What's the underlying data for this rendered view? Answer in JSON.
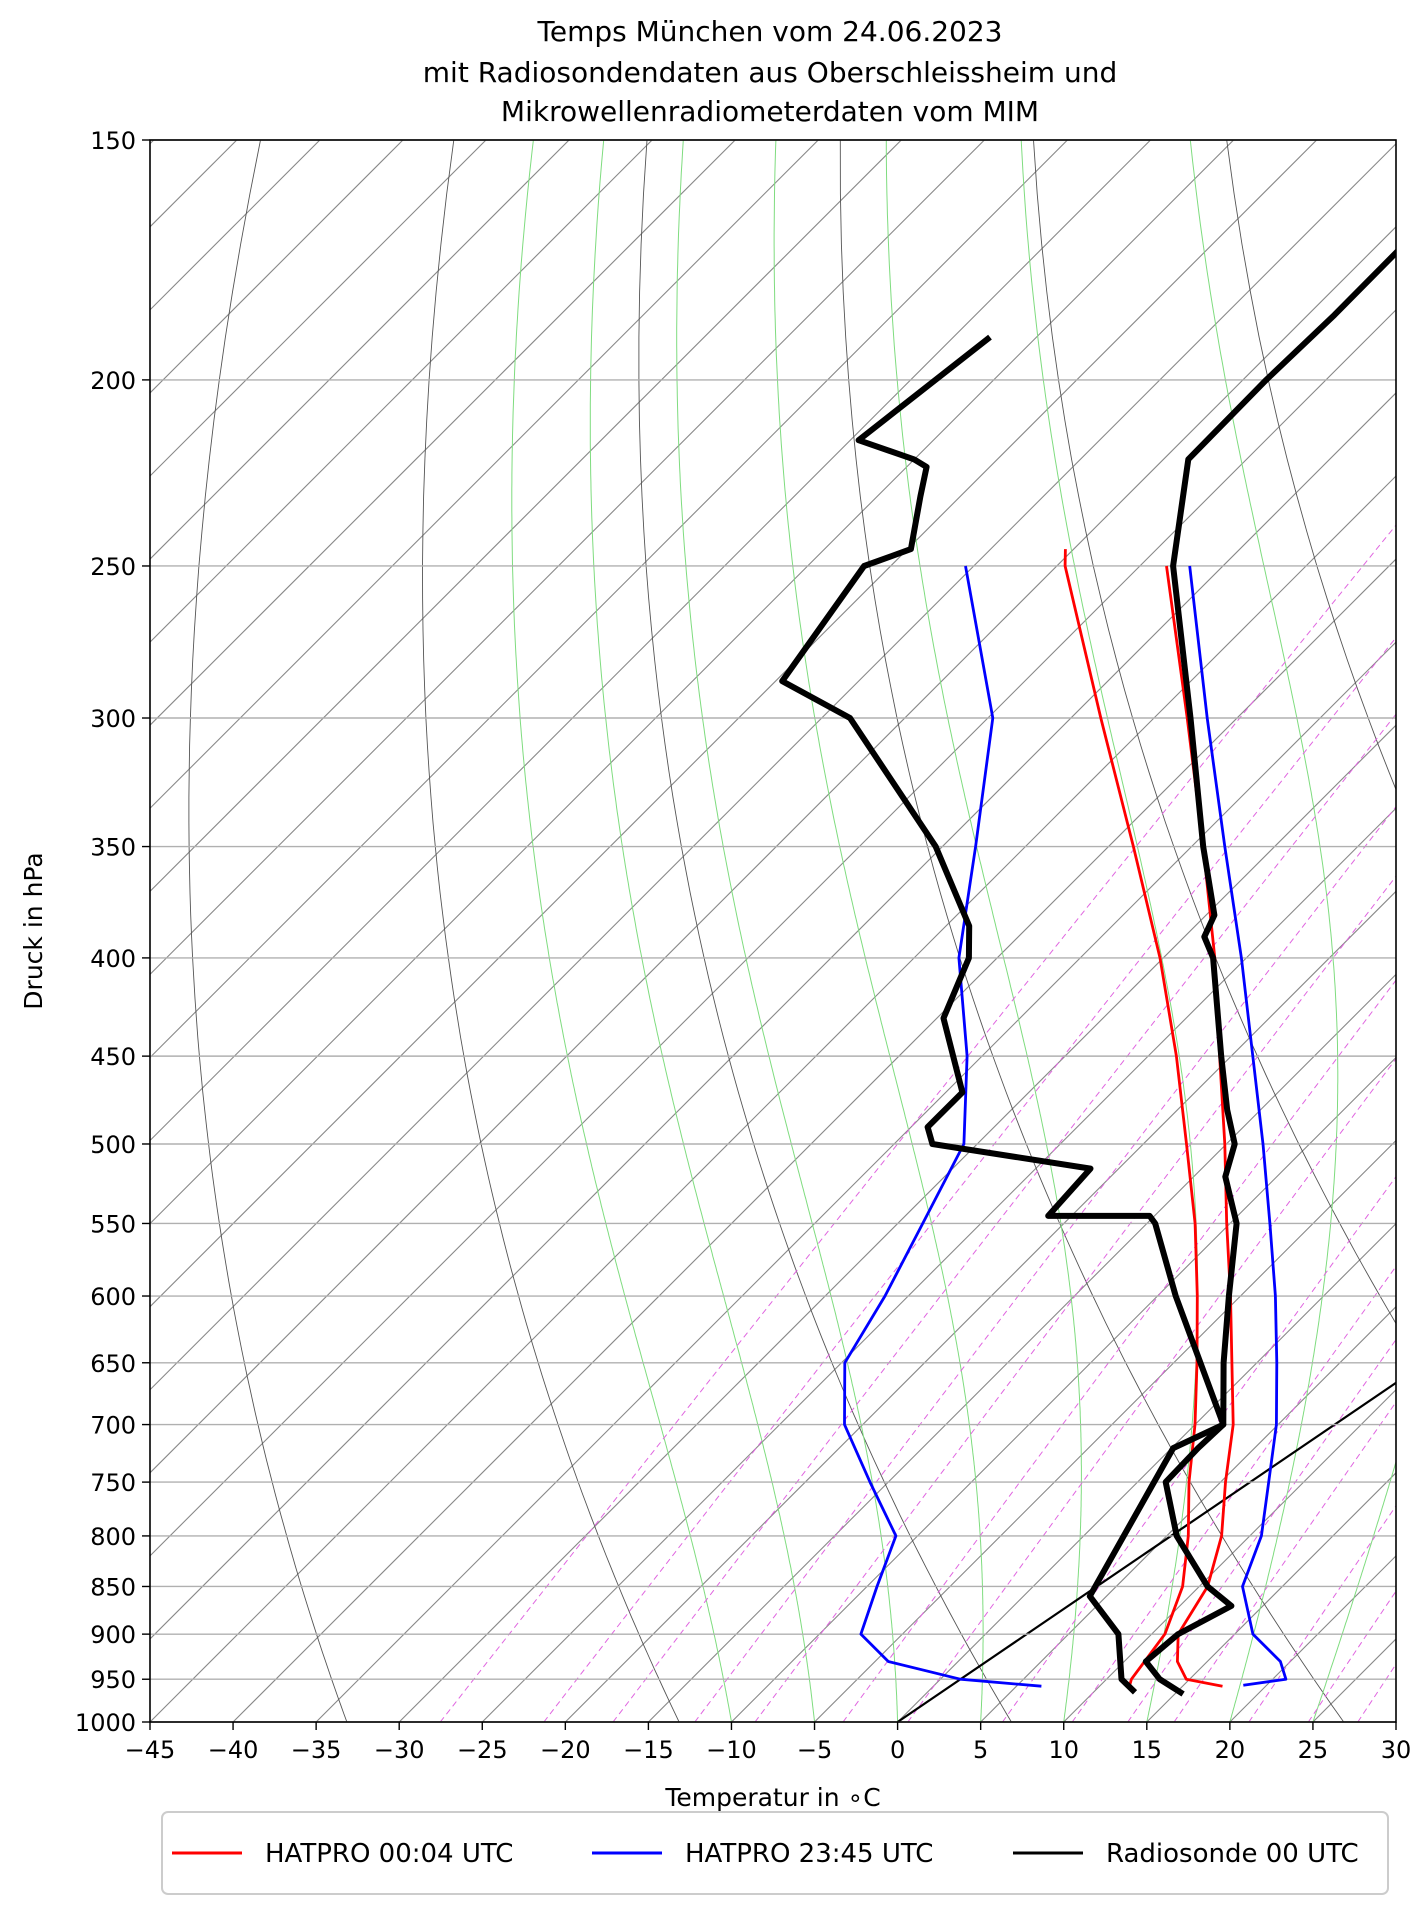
{
  "chart_data": {
    "type": "line",
    "subtype": "skew-T log-p diagram",
    "title_lines": [
      "Temps München vom 24.06.2023",
      "mit Radiosondendaten aus Oberschleissheim und",
      "Mikrowellenradiometerdaten vom MIM"
    ],
    "xlabel": "Temperatur in ∘C",
    "ylabel": "Druck in hPa",
    "x_ticks": [
      -45,
      -40,
      -35,
      -30,
      -25,
      -20,
      -15,
      -10,
      -5,
      0,
      5,
      10,
      15,
      20,
      25,
      30
    ],
    "y_ticks": [
      150,
      200,
      250,
      300,
      350,
      400,
      450,
      500,
      550,
      600,
      650,
      700,
      750,
      800,
      850,
      900,
      950,
      1000
    ],
    "xlim": [
      -45,
      30
    ],
    "ylim": [
      1000,
      150
    ],
    "y_scale": "log",
    "grid": true,
    "legend_position": "bottom",
    "colors": {
      "hatpro_0004": "#ff0000",
      "hatpro_2345": "#0000ff",
      "radiosonde": "#000000",
      "isotherms": "#888888",
      "dry_adiabats": "#555555",
      "moist_adiabats": "#7fdc7f",
      "mixing_ratio": "#e066e0"
    },
    "legend": [
      {
        "key": "hatpro_0004",
        "label": "HATPRO 00:04 UTC",
        "color": "#ff0000"
      },
      {
        "key": "hatpro_2345",
        "label": "HATPRO 23:45 UTC",
        "color": "#0000ff"
      },
      {
        "key": "radiosonde",
        "label": "Radiosonde 00 UTC",
        "color": "#000000"
      }
    ],
    "series": [
      {
        "key": "hatpro_0004",
        "name": "HATPRO 00:04 UTC",
        "color": "#ff0000",
        "temperature": [
          [
            958,
            17.4
          ],
          [
            950,
            14.8
          ],
          [
            930,
            13.2
          ],
          [
            900,
            11.6
          ],
          [
            850,
            10.5
          ],
          [
            800,
            8.3
          ],
          [
            750,
            5.3
          ],
          [
            700,
            2.3
          ],
          [
            650,
            -1.5
          ],
          [
            600,
            -5.6
          ],
          [
            550,
            -10.2
          ],
          [
            500,
            -15.1
          ],
          [
            450,
            -20.7
          ],
          [
            400,
            -26.9
          ],
          [
            350,
            -34.3
          ],
          [
            300,
            -43.0
          ],
          [
            250,
            -53.4
          ]
        ],
        "dewpoint": [
          [
            958,
            11.8
          ],
          [
            950,
            11.5
          ],
          [
            900,
            10.8
          ],
          [
            850,
            9.0
          ],
          [
            800,
            6.3
          ],
          [
            750,
            3.1
          ],
          [
            700,
            0.0
          ],
          [
            650,
            -3.6
          ],
          [
            600,
            -7.6
          ],
          [
            550,
            -12.1
          ],
          [
            500,
            -17.4
          ],
          [
            450,
            -23.3
          ],
          [
            400,
            -30.2
          ],
          [
            350,
            -38.5
          ],
          [
            300,
            -48.2
          ],
          [
            250,
            -59.5
          ],
          [
            245,
            -60.5
          ]
        ]
      },
      {
        "key": "hatpro_2345",
        "name": "HATPRO 23:45 UTC",
        "color": "#0000ff",
        "temperature": [
          [
            957,
            18.6
          ],
          [
            950,
            20.8
          ],
          [
            930,
            19.4
          ],
          [
            900,
            16.1
          ],
          [
            850,
            12.6
          ],
          [
            800,
            10.7
          ],
          [
            750,
            7.9
          ],
          [
            700,
            4.9
          ],
          [
            650,
            1.2
          ],
          [
            600,
            -2.9
          ],
          [
            550,
            -7.6
          ],
          [
            500,
            -12.8
          ],
          [
            450,
            -18.7
          ],
          [
            400,
            -25.3
          ],
          [
            350,
            -33.0
          ],
          [
            300,
            -41.8
          ],
          [
            250,
            -52.0
          ]
        ],
        "dewpoint": [
          [
            958,
            6.5
          ],
          [
            950,
            1.2
          ],
          [
            930,
            -4.2
          ],
          [
            900,
            -7.5
          ],
          [
            850,
            -9.4
          ],
          [
            800,
            -11.3
          ],
          [
            750,
            -16.1
          ],
          [
            700,
            -21.1
          ],
          [
            650,
            -24.8
          ],
          [
            600,
            -26.4
          ],
          [
            550,
            -28.5
          ],
          [
            500,
            -30.8
          ],
          [
            450,
            -35.9
          ],
          [
            400,
            -42.3
          ],
          [
            350,
            -48.0
          ],
          [
            300,
            -54.7
          ],
          [
            250,
            -65.5
          ]
        ]
      },
      {
        "key": "radiosonde",
        "name": "Radiosonde 00 UTC",
        "color": "#000000",
        "temperature": [
          [
            967,
            15.5
          ],
          [
            950,
            13.2
          ],
          [
            930,
            11.3
          ],
          [
            900,
            11.6
          ],
          [
            870,
            13.1
          ],
          [
            850,
            10.5
          ],
          [
            800,
            5.6
          ],
          [
            750,
            1.7
          ],
          [
            720,
            1.6
          ],
          [
            700,
            1.7
          ],
          [
            650,
            -2.0
          ],
          [
            600,
            -5.7
          ],
          [
            550,
            -9.6
          ],
          [
            520,
            -13.1
          ],
          [
            500,
            -14.5
          ],
          [
            480,
            -17.0
          ],
          [
            450,
            -20.6
          ],
          [
            400,
            -27.0
          ],
          [
            390,
            -28.8
          ],
          [
            380,
            -29.5
          ],
          [
            350,
            -34.3
          ],
          [
            300,
            -42.8
          ],
          [
            250,
            -53.0
          ],
          [
            220,
            -58.5
          ],
          [
            200,
            -58.6
          ],
          [
            185,
            -58.4
          ],
          [
            150,
            -58.5
          ]
        ],
        "dewpoint": [
          [
            965,
            12.5
          ],
          [
            950,
            10.9
          ],
          [
            900,
            8.0
          ],
          [
            860,
            4.0
          ],
          [
            720,
            0.1
          ],
          [
            700,
            1.7
          ],
          [
            600,
            -8.9
          ],
          [
            550,
            -14.5
          ],
          [
            545,
            -15.3
          ],
          [
            545,
            -21.4
          ],
          [
            515,
            -21.7
          ],
          [
            500,
            -32.7
          ],
          [
            490,
            -34.0
          ],
          [
            470,
            -34.0
          ],
          [
            430,
            -39.6
          ],
          [
            400,
            -41.7
          ],
          [
            385,
            -43.6
          ],
          [
            350,
            -50.4
          ],
          [
            300,
            -63.3
          ],
          [
            287,
            -69.6
          ],
          [
            250,
            -71.6
          ],
          [
            245,
            -69.8
          ],
          [
            230,
            -72.4
          ],
          [
            222,
            -73.8
          ],
          [
            220,
            -75.0
          ],
          [
            215,
            -79.5
          ],
          [
            190,
            -77.8
          ]
        ]
      }
    ],
    "reference_lines": {
      "isotherm_step_C": 5,
      "dry_adiabat_potential_temps_K": [
        220,
        240,
        260,
        280,
        300,
        320,
        340,
        360,
        380,
        400,
        420,
        440,
        460,
        480,
        500,
        520
      ],
      "moist_adiabat_start_temps_C": [
        -10,
        -5,
        0,
        5,
        10,
        15,
        20,
        25,
        30,
        35,
        40,
        45
      ],
      "mixing_ratios_gkg": [
        0.4,
        0.7,
        1,
        1.5,
        2,
        3,
        4,
        6,
        8,
        10,
        12,
        16,
        20,
        24,
        28,
        32,
        36,
        40,
        48
      ],
      "extra_line": [
        [
          1000,
          0
        ],
        [
          280,
          30
        ]
      ]
    }
  }
}
